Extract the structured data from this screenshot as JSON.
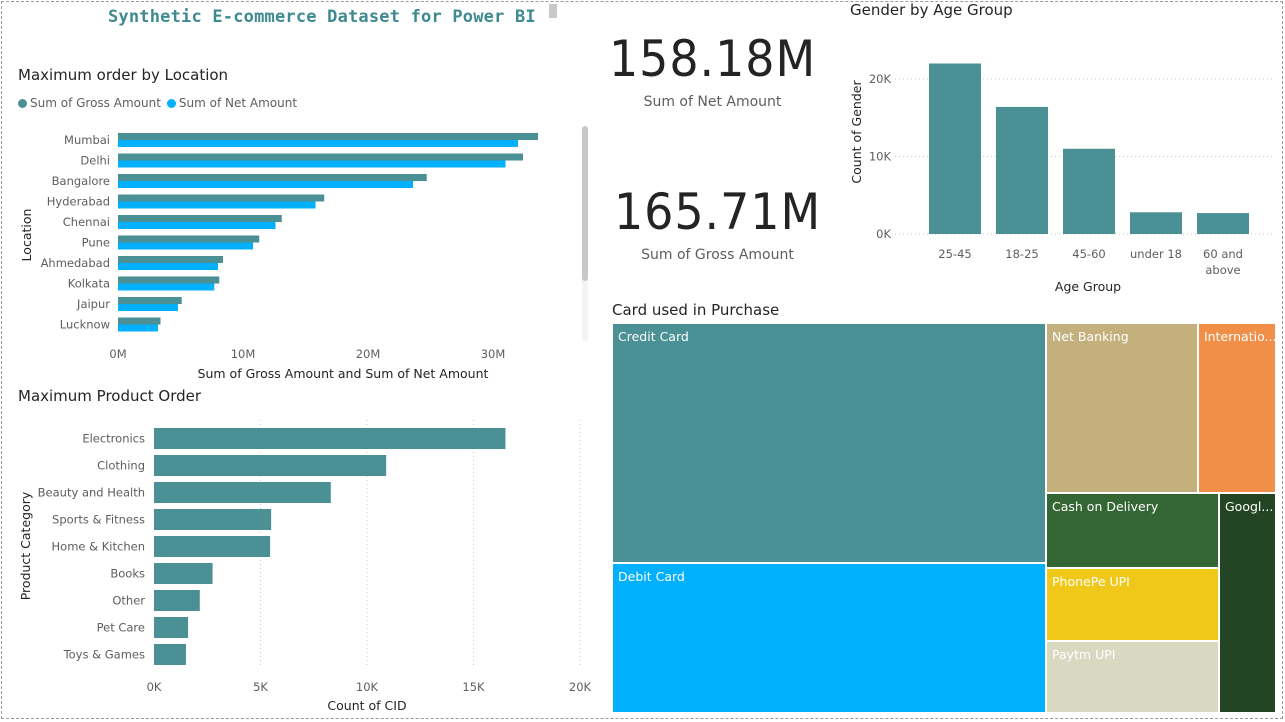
{
  "dashboard": {
    "title": "Synthetic E-commerce Dataset for Power BI"
  },
  "colors": {
    "teal": "#4a9095",
    "blue": "#01b0fe",
    "tan": "#c4b07d",
    "orange": "#f18f49",
    "darkgreen": "#336633",
    "yellow": "#f0c81a",
    "lightgray": "#d9d8c1",
    "forest": "#234524"
  },
  "cards": [
    {
      "value": "158.18M",
      "label": "Sum of Net Amount"
    },
    {
      "value": "165.71M",
      "label": "Sum of Gross Amount"
    }
  ],
  "chart_data": [
    {
      "id": "location",
      "type": "bar",
      "orientation": "horizontal",
      "title": "Maximum order by Location",
      "categories": [
        "Mumbai",
        "Delhi",
        "Bangalore",
        "Hyderabad",
        "Chennai",
        "Pune",
        "Ahmedabad",
        "Kolkata",
        "Jaipur",
        "Lucknow"
      ],
      "series": [
        {
          "name": "Sum of Gross Amount",
          "color": "#4a9095",
          "values": [
            33600000,
            32400000,
            24700000,
            16500000,
            13100000,
            11300000,
            8400000,
            8100000,
            5100000,
            3400000
          ]
        },
        {
          "name": "Sum of Net Amount",
          "color": "#01b0fe",
          "values": [
            32000000,
            31000000,
            23600000,
            15800000,
            12600000,
            10800000,
            8000000,
            7700000,
            4800000,
            3200000
          ]
        }
      ],
      "xlabel": "Sum of Gross Amount and Sum of Net Amount",
      "ylabel": "Location",
      "xlim": [
        0,
        36000000
      ],
      "xticks": [
        0,
        10000000,
        20000000,
        30000000
      ],
      "xtick_labels": [
        "0M",
        "10M",
        "20M",
        "30M"
      ],
      "legend": "top-left"
    },
    {
      "id": "product",
      "type": "bar",
      "orientation": "horizontal",
      "title": "Maximum Product Order",
      "categories": [
        "Electronics",
        "Clothing",
        "Beauty and Health",
        "Sports & Fitness",
        "Home & Kitchen",
        "Books",
        "Other",
        "Pet Care",
        "Toys & Games"
      ],
      "values": [
        16500,
        10900,
        8300,
        5500,
        5450,
        2750,
        2150,
        1600,
        1500
      ],
      "color": "#4a9095",
      "xlabel": "Count of CID",
      "ylabel": "Product Category",
      "xlim": [
        0,
        20000
      ],
      "xticks": [
        0,
        5000,
        10000,
        15000,
        20000
      ],
      "xtick_labels": [
        "0K",
        "5K",
        "10K",
        "15K",
        "20K"
      ],
      "grid": true
    },
    {
      "id": "age",
      "type": "bar",
      "title": "Gender by Age Group",
      "categories": [
        "25-45",
        "18-25",
        "45-60",
        "under 18",
        "60 and above"
      ],
      "category_lines": [
        [
          "25-45"
        ],
        [
          "18-25"
        ],
        [
          "45-60"
        ],
        [
          "under 18"
        ],
        [
          "60 and",
          "above"
        ]
      ],
      "values": [
        22000,
        16400,
        11000,
        2800,
        2700
      ],
      "color": "#4a9095",
      "xlabel": "Age Group",
      "ylabel": "Count of Gender",
      "ylim": [
        0,
        24000
      ],
      "yticks": [
        0,
        10000,
        20000
      ],
      "ytick_labels": [
        "0K",
        "10K",
        "20K"
      ],
      "grid": true
    },
    {
      "id": "card",
      "type": "treemap",
      "title": "Card used in Purchase",
      "labels": [
        "Credit Card",
        "Debit Card",
        "Net Banking",
        "Internatio...",
        "Cash on Delivery",
        "PhonePe UPI",
        "Paytm UPI",
        "Googl..."
      ]
    }
  ]
}
